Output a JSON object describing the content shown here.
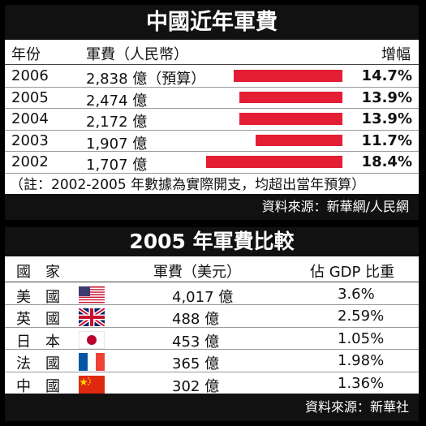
{
  "panel1": {
    "title": "中國近年軍費",
    "headers": {
      "year": "年份",
      "spending": "軍費（人民幣）",
      "growth": "增幅"
    },
    "note": "（註：2002-2005 年數據為實際開支，均超出當年預算）",
    "source": "資料來源：新華網/人民網"
  },
  "panel2": {
    "title": "2005 年軍費比較",
    "headers": {
      "country": "國　家",
      "spending": "軍費（美元）",
      "gdp": "佔 GDP 比重"
    },
    "rows": [
      {
        "country": "美　國",
        "flag": "us-flag-icon",
        "spending": "4,017 億",
        "gdp": "3.6%"
      },
      {
        "country": "英　國",
        "flag": "uk-flag-icon",
        "spending": "488 億",
        "gdp": "2.59%"
      },
      {
        "country": "日　本",
        "flag": "japan-flag-icon",
        "spending": "453 億",
        "gdp": "1.05%"
      },
      {
        "country": "法　國",
        "flag": "france-flag-icon",
        "spending": "365 億",
        "gdp": "1.98%"
      },
      {
        "country": "中　國",
        "flag": "china-flag-icon",
        "spending": "302 億",
        "gdp": "1.36%"
      }
    ],
    "source": "資料來源：新華社"
  },
  "colors": {
    "bar": "#e31e35",
    "title_bg": "#111111"
  },
  "chart_data": {
    "type": "bar",
    "title": "中國近年軍費",
    "categories": [
      "2006",
      "2005",
      "2004",
      "2003",
      "2002"
    ],
    "spending_labels": [
      "2,838 億（預算）",
      "2,474 億",
      "2,172 億",
      "1,907 億",
      "1,707 億"
    ],
    "growth_labels": [
      "14.7%",
      "13.9%",
      "13.9%",
      "11.7%",
      "18.4%"
    ],
    "values": [
      14.7,
      13.9,
      13.9,
      11.7,
      18.4
    ],
    "xlim": [
      0,
      18.4
    ]
  }
}
